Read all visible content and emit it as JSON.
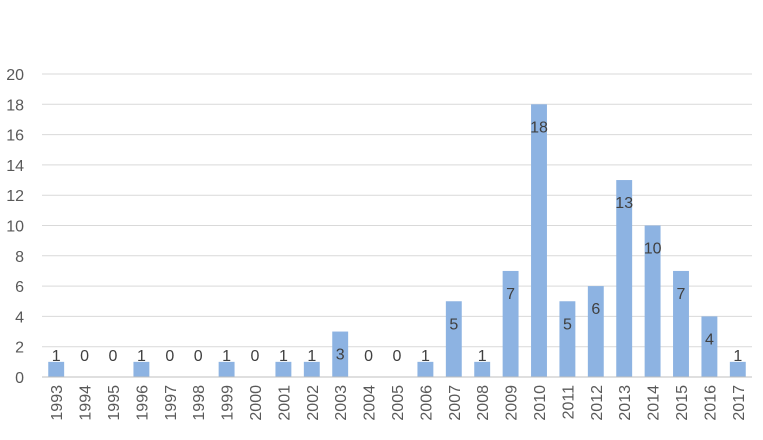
{
  "chart_data": {
    "type": "bar",
    "categories": [
      "1993",
      "1994",
      "1995",
      "1996",
      "1997",
      "1998",
      "1999",
      "2000",
      "2001",
      "2002",
      "2003",
      "2004",
      "2005",
      "2006",
      "2007",
      "2008",
      "2009",
      "2010",
      "2011",
      "2012",
      "2013",
      "2014",
      "2015",
      "2016",
      "2017"
    ],
    "values": [
      1,
      0,
      0,
      1,
      0,
      0,
      1,
      0,
      1,
      1,
      3,
      0,
      0,
      1,
      5,
      1,
      7,
      18,
      5,
      6,
      13,
      10,
      7,
      4,
      1
    ],
    "ylim": [
      0,
      20
    ],
    "yticks": [
      0,
      2,
      4,
      6,
      8,
      10,
      12,
      14,
      16,
      18,
      20
    ],
    "grid": true,
    "colors": {
      "bar": "#8db3e2",
      "grid": "#d9d9d9",
      "axis": "#bfbfbf",
      "text": "#595959"
    },
    "data_labels": true
  }
}
